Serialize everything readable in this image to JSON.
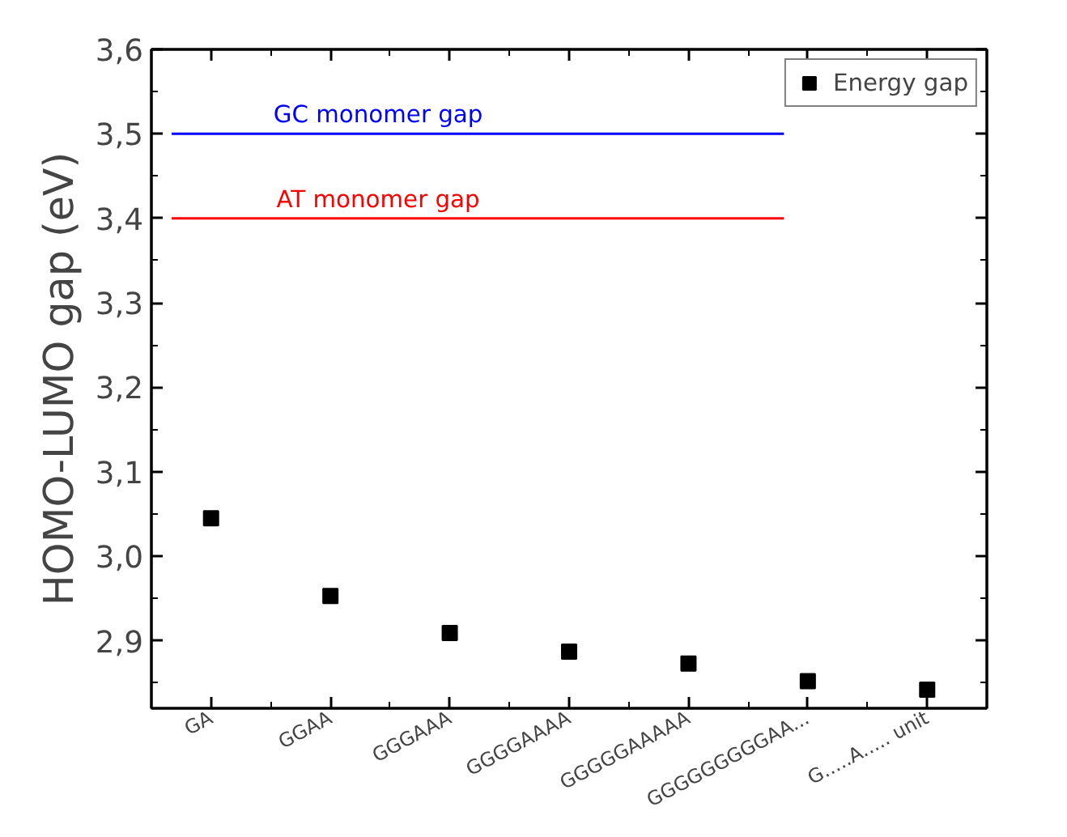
{
  "chart_data": {
    "type": "scatter",
    "ylabel": "HOMO-LUMO gap (eV)",
    "categories": [
      "GA",
      "GGAA",
      "GGGAAA",
      "GGGGAAAA",
      "GGGGGAAAAA",
      "GGGGGGGGGAA...",
      "G.....A..... unit"
    ],
    "series": [
      {
        "name": "Energy gap",
        "color": "#000000",
        "values": [
          3.045,
          2.953,
          2.909,
          2.887,
          2.873,
          2.852,
          2.842
        ]
      }
    ],
    "marker": "square",
    "ylim": [
      2.82,
      3.6
    ],
    "yticks": [
      {
        "value": 2.9,
        "label": "2,9"
      },
      {
        "value": 3.0,
        "label": "3,0"
      },
      {
        "value": 3.1,
        "label": "3,1"
      },
      {
        "value": 3.2,
        "label": "3,2"
      },
      {
        "value": 3.3,
        "label": "3,3"
      },
      {
        "value": 3.4,
        "label": "3,4"
      },
      {
        "value": 3.5,
        "label": "3,5"
      },
      {
        "value": 3.6,
        "label": "3,6"
      }
    ],
    "ref_lines": [
      {
        "axis": "y",
        "value": 3.5,
        "label": "GC monomer gap",
        "color": "#0000ff"
      },
      {
        "axis": "y",
        "value": 3.4,
        "label": "AT monomer gap",
        "color": "#ff0000"
      }
    ],
    "legend": "top right",
    "grid": false
  }
}
